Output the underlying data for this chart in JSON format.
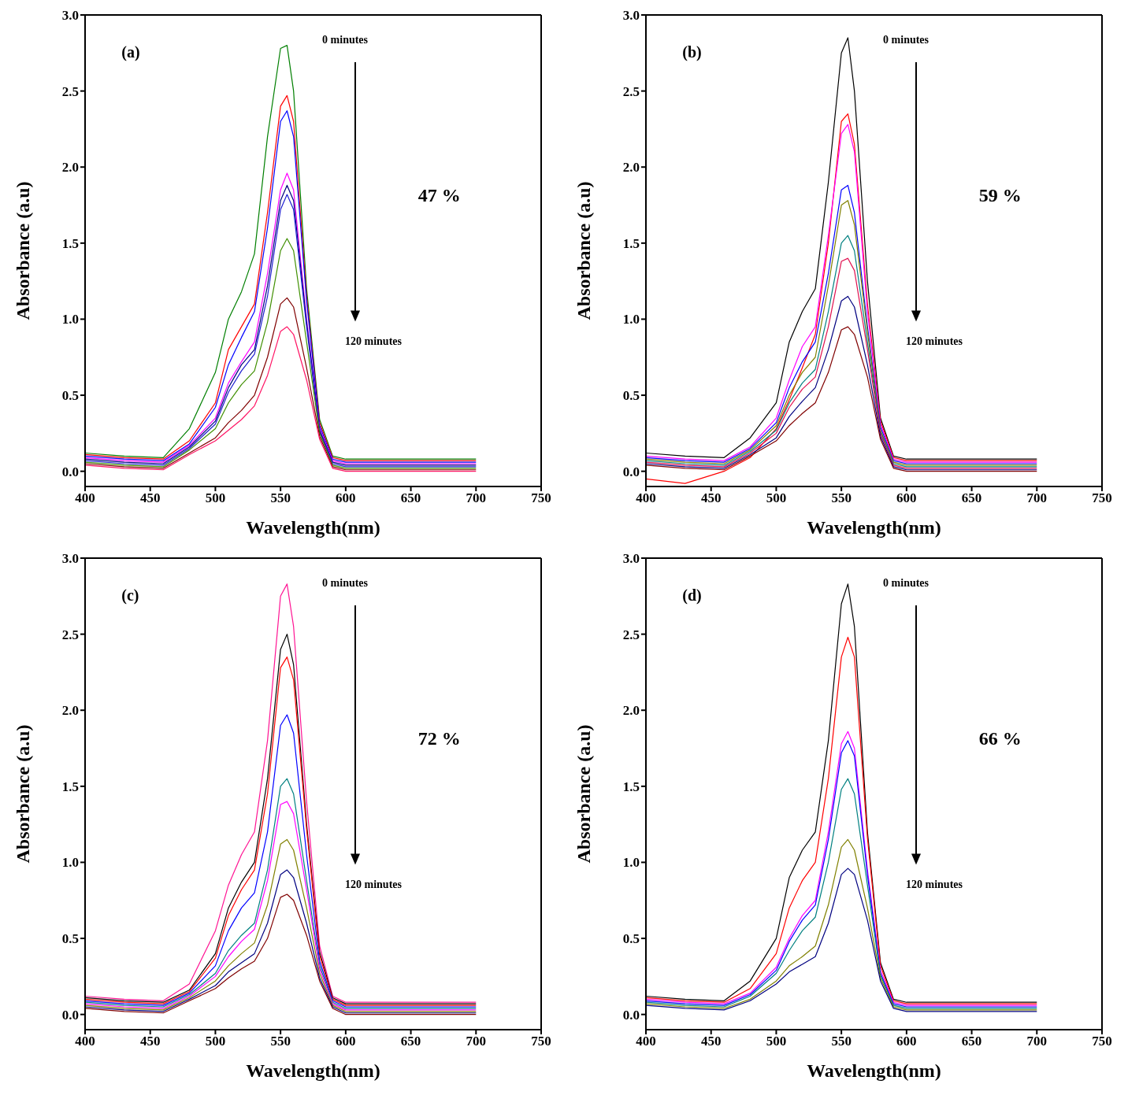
{
  "chart_data": [
    {
      "type": "line",
      "xlabel": "Wavelength(nm)",
      "ylabel": "Absorbance (a.u)",
      "annotations": [
        "(a)",
        "0 minutes",
        "120 minutes",
        "47 %"
      ],
      "marker": "none",
      "line_style": "solid",
      "xlim": [
        400,
        750
      ],
      "xticks": [
        400,
        450,
        500,
        550,
        600,
        650,
        700,
        750
      ],
      "ylim": [
        -0.1,
        3.0
      ],
      "yticks": [
        {
          "value": 0,
          "label": "0.0"
        },
        {
          "value": 0.5,
          "label": "0.5"
        },
        {
          "value": 1,
          "label": "1.0"
        },
        {
          "value": 1.5,
          "label": "1.5"
        },
        {
          "value": 2,
          "label": "2.0"
        },
        {
          "value": 2.5,
          "label": "2.5"
        },
        {
          "value": 3,
          "label": "3.0"
        }
      ],
      "x": [
        400,
        430,
        460,
        480,
        500,
        510,
        520,
        530,
        540,
        550,
        555,
        560,
        570,
        580,
        590,
        600,
        650,
        700
      ],
      "series": [
        {
          "color": "#007f00",
          "values": [
            0.12,
            0.1,
            0.09,
            0.28,
            0.65,
            1.0,
            1.18,
            1.43,
            2.2,
            2.78,
            2.8,
            2.5,
            1.2,
            0.34,
            0.1,
            0.08,
            0.08,
            0.08
          ]
        },
        {
          "color": "#ff0000",
          "values": [
            0.11,
            0.09,
            0.08,
            0.2,
            0.45,
            0.8,
            0.95,
            1.1,
            1.7,
            2.4,
            2.47,
            2.3,
            1.15,
            0.32,
            0.09,
            0.07,
            0.07,
            0.07
          ]
        },
        {
          "color": "#0000ff",
          "values": [
            0.1,
            0.08,
            0.07,
            0.18,
            0.42,
            0.7,
            0.88,
            1.05,
            1.6,
            2.3,
            2.37,
            2.2,
            1.12,
            0.3,
            0.08,
            0.06,
            0.06,
            0.06
          ]
        },
        {
          "color": "#ff00ff",
          "values": [
            0.09,
            0.07,
            0.06,
            0.17,
            0.35,
            0.58,
            0.72,
            0.85,
            1.3,
            1.85,
            1.96,
            1.85,
            1.0,
            0.28,
            0.07,
            0.05,
            0.05,
            0.05
          ]
        },
        {
          "color": "#000080",
          "values": [
            0.08,
            0.06,
            0.05,
            0.16,
            0.33,
            0.55,
            0.7,
            0.8,
            1.22,
            1.78,
            1.88,
            1.78,
            0.98,
            0.27,
            0.06,
            0.04,
            0.04,
            0.04
          ]
        },
        {
          "color": "#1f1fd0",
          "values": [
            0.07,
            0.05,
            0.04,
            0.15,
            0.31,
            0.52,
            0.66,
            0.77,
            1.15,
            1.72,
            1.82,
            1.72,
            0.95,
            0.26,
            0.05,
            0.03,
            0.03,
            0.03
          ]
        },
        {
          "color": "#3f8f00",
          "values": [
            0.06,
            0.04,
            0.03,
            0.14,
            0.28,
            0.45,
            0.57,
            0.66,
            0.98,
            1.45,
            1.53,
            1.45,
            0.85,
            0.25,
            0.04,
            0.02,
            0.02,
            0.02
          ]
        },
        {
          "color": "#800000",
          "values": [
            0.05,
            0.03,
            0.02,
            0.12,
            0.22,
            0.32,
            0.4,
            0.5,
            0.75,
            1.1,
            1.14,
            1.08,
            0.68,
            0.23,
            0.03,
            0.01,
            0.01,
            0.01
          ]
        },
        {
          "color": "#ff1464",
          "values": [
            0.04,
            0.02,
            0.01,
            0.11,
            0.2,
            0.27,
            0.34,
            0.43,
            0.63,
            0.92,
            0.95,
            0.9,
            0.6,
            0.21,
            0.02,
            0.0,
            0.0,
            0.0
          ]
        }
      ]
    },
    {
      "type": "line",
      "xlabel": "Wavelength(nm)",
      "ylabel": "Absorbance (a.u)",
      "annotations": [
        "(b)",
        "0 minutes",
        "120 minutes",
        "59 %"
      ],
      "marker": "none",
      "line_style": "solid",
      "xlim": [
        400,
        750
      ],
      "xticks": [
        400,
        450,
        500,
        550,
        600,
        650,
        700,
        750
      ],
      "ylim": [
        -0.1,
        3.0
      ],
      "yticks": [
        {
          "value": 0,
          "label": "0.0"
        },
        {
          "value": 0.5,
          "label": "0.5"
        },
        {
          "value": 1,
          "label": "1.0"
        },
        {
          "value": 1.5,
          "label": "1.5"
        },
        {
          "value": 2,
          "label": "2.0"
        },
        {
          "value": 2.5,
          "label": "2.5"
        },
        {
          "value": 3,
          "label": "3.0"
        }
      ],
      "x": [
        400,
        430,
        460,
        480,
        500,
        510,
        520,
        530,
        540,
        550,
        555,
        560,
        570,
        580,
        590,
        600,
        650,
        700
      ],
      "series": [
        {
          "color": "#000000",
          "values": [
            0.12,
            0.1,
            0.09,
            0.22,
            0.45,
            0.85,
            1.05,
            1.2,
            1.9,
            2.75,
            2.85,
            2.5,
            1.25,
            0.35,
            0.1,
            0.08,
            0.08,
            0.08
          ]
        },
        {
          "color": "#ff0000",
          "values": [
            -0.05,
            -0.08,
            0.0,
            0.09,
            0.28,
            0.47,
            0.68,
            0.9,
            1.5,
            2.3,
            2.35,
            2.15,
            1.1,
            0.33,
            0.09,
            0.07,
            0.07,
            0.07
          ]
        },
        {
          "color": "#ff00ff",
          "values": [
            0.1,
            0.08,
            0.07,
            0.16,
            0.35,
            0.6,
            0.82,
            0.95,
            1.55,
            2.22,
            2.28,
            2.1,
            1.05,
            0.31,
            0.08,
            0.06,
            0.06,
            0.06
          ]
        },
        {
          "color": "#0000ff",
          "values": [
            0.09,
            0.07,
            0.06,
            0.15,
            0.32,
            0.55,
            0.72,
            0.85,
            1.3,
            1.85,
            1.88,
            1.7,
            0.95,
            0.29,
            0.07,
            0.05,
            0.05,
            0.05
          ]
        },
        {
          "color": "#808000",
          "values": [
            0.08,
            0.06,
            0.05,
            0.14,
            0.3,
            0.5,
            0.65,
            0.75,
            1.22,
            1.75,
            1.78,
            1.62,
            0.92,
            0.27,
            0.06,
            0.04,
            0.04,
            0.04
          ]
        },
        {
          "color": "#008080",
          "values": [
            0.07,
            0.05,
            0.04,
            0.13,
            0.27,
            0.45,
            0.58,
            0.67,
            1.05,
            1.5,
            1.55,
            1.45,
            0.85,
            0.26,
            0.05,
            0.03,
            0.03,
            0.03
          ]
        },
        {
          "color": "#e0104f",
          "values": [
            0.06,
            0.04,
            0.03,
            0.12,
            0.25,
            0.42,
            0.54,
            0.62,
            0.95,
            1.38,
            1.4,
            1.32,
            0.8,
            0.25,
            0.04,
            0.02,
            0.02,
            0.02
          ]
        },
        {
          "color": "#000080",
          "values": [
            0.05,
            0.03,
            0.02,
            0.11,
            0.22,
            0.36,
            0.46,
            0.55,
            0.8,
            1.12,
            1.15,
            1.08,
            0.7,
            0.23,
            0.03,
            0.01,
            0.01,
            0.01
          ]
        },
        {
          "color": "#800000",
          "values": [
            0.04,
            0.02,
            0.01,
            0.1,
            0.2,
            0.3,
            0.38,
            0.45,
            0.65,
            0.93,
            0.95,
            0.9,
            0.62,
            0.21,
            0.02,
            0.0,
            0.0,
            0.0
          ]
        }
      ]
    },
    {
      "type": "line",
      "xlabel": "Wavelength(nm)",
      "ylabel": "Absorbance (a.u)",
      "annotations": [
        "(c)",
        "0 minutes",
        "120 minutes",
        "72 %"
      ],
      "marker": "none",
      "line_style": "solid",
      "xlim": [
        400,
        750
      ],
      "xticks": [
        400,
        450,
        500,
        550,
        600,
        650,
        700,
        750
      ],
      "ylim": [
        -0.1,
        3.0
      ],
      "yticks": [
        {
          "value": 0,
          "label": "0.0"
        },
        {
          "value": 0.5,
          "label": "0.5"
        },
        {
          "value": 1,
          "label": "1.0"
        },
        {
          "value": 1.5,
          "label": "1.5"
        },
        {
          "value": 2,
          "label": "2.0"
        },
        {
          "value": 2.5,
          "label": "2.5"
        },
        {
          "value": 3,
          "label": "3.0"
        }
      ],
      "x": [
        400,
        430,
        460,
        480,
        500,
        510,
        520,
        530,
        540,
        550,
        555,
        560,
        570,
        580,
        590,
        600,
        650,
        700
      ],
      "series": [
        {
          "color": "#ff1493",
          "values": [
            0.12,
            0.1,
            0.09,
            0.2,
            0.55,
            0.85,
            1.05,
            1.2,
            1.8,
            2.75,
            2.83,
            2.55,
            1.4,
            0.45,
            0.12,
            0.08,
            0.08,
            0.08
          ]
        },
        {
          "color": "#000000",
          "values": [
            0.11,
            0.09,
            0.08,
            0.16,
            0.4,
            0.7,
            0.87,
            1.0,
            1.55,
            2.4,
            2.5,
            2.3,
            1.25,
            0.41,
            0.11,
            0.07,
            0.07,
            0.07
          ]
        },
        {
          "color": "#ff0000",
          "values": [
            0.1,
            0.08,
            0.07,
            0.15,
            0.37,
            0.65,
            0.82,
            0.95,
            1.45,
            2.28,
            2.35,
            2.2,
            1.22,
            0.39,
            0.1,
            0.06,
            0.06,
            0.06
          ]
        },
        {
          "color": "#0000ff",
          "values": [
            0.09,
            0.07,
            0.06,
            0.14,
            0.32,
            0.55,
            0.7,
            0.8,
            1.2,
            1.9,
            1.97,
            1.85,
            1.05,
            0.35,
            0.09,
            0.05,
            0.05,
            0.05
          ]
        },
        {
          "color": "#008080",
          "values": [
            0.08,
            0.06,
            0.05,
            0.13,
            0.27,
            0.42,
            0.52,
            0.6,
            0.95,
            1.5,
            1.55,
            1.45,
            0.88,
            0.32,
            0.08,
            0.04,
            0.04,
            0.04
          ]
        },
        {
          "color": "#ff00ff",
          "values": [
            0.07,
            0.05,
            0.04,
            0.12,
            0.25,
            0.38,
            0.48,
            0.56,
            0.88,
            1.38,
            1.4,
            1.32,
            0.82,
            0.3,
            0.07,
            0.03,
            0.03,
            0.03
          ]
        },
        {
          "color": "#808000",
          "values": [
            0.06,
            0.04,
            0.03,
            0.11,
            0.22,
            0.32,
            0.4,
            0.47,
            0.72,
            1.12,
            1.15,
            1.08,
            0.7,
            0.27,
            0.06,
            0.02,
            0.02,
            0.02
          ]
        },
        {
          "color": "#000080",
          "values": [
            0.05,
            0.03,
            0.02,
            0.1,
            0.19,
            0.28,
            0.34,
            0.4,
            0.6,
            0.92,
            0.95,
            0.9,
            0.6,
            0.24,
            0.05,
            0.01,
            0.01,
            0.01
          ]
        },
        {
          "color": "#800000",
          "values": [
            0.04,
            0.02,
            0.01,
            0.09,
            0.17,
            0.24,
            0.3,
            0.35,
            0.5,
            0.77,
            0.79,
            0.75,
            0.52,
            0.22,
            0.04,
            0.0,
            0.0,
            0.0
          ]
        }
      ]
    },
    {
      "type": "line",
      "xlabel": "Wavelength(nm)",
      "ylabel": "Absorbance (a.u)",
      "annotations": [
        "(d)",
        "0 minutes",
        "120 minutes",
        "66 %"
      ],
      "marker": "none",
      "line_style": "solid",
      "xlim": [
        400,
        750
      ],
      "xticks": [
        400,
        450,
        500,
        550,
        600,
        650,
        700,
        750
      ],
      "ylim": [
        -0.1,
        3.0
      ],
      "yticks": [
        {
          "value": 0,
          "label": "0.0"
        },
        {
          "value": 0.5,
          "label": "0.5"
        },
        {
          "value": 1,
          "label": "1.0"
        },
        {
          "value": 1.5,
          "label": "1.5"
        },
        {
          "value": 2,
          "label": "2.0"
        },
        {
          "value": 2.5,
          "label": "2.5"
        },
        {
          "value": 3,
          "label": "3.0"
        }
      ],
      "x": [
        400,
        430,
        460,
        480,
        500,
        510,
        520,
        530,
        540,
        550,
        555,
        560,
        570,
        580,
        590,
        600,
        650,
        700
      ],
      "series": [
        {
          "color": "#000000",
          "values": [
            0.12,
            0.1,
            0.09,
            0.22,
            0.5,
            0.9,
            1.08,
            1.2,
            1.8,
            2.7,
            2.83,
            2.55,
            1.2,
            0.34,
            0.1,
            0.08,
            0.08,
            0.08
          ]
        },
        {
          "color": "#ff0000",
          "values": [
            0.11,
            0.09,
            0.08,
            0.17,
            0.4,
            0.7,
            0.88,
            1.0,
            1.55,
            2.35,
            2.48,
            2.35,
            1.16,
            0.32,
            0.09,
            0.07,
            0.07,
            0.07
          ]
        },
        {
          "color": "#ff00ff",
          "values": [
            0.1,
            0.08,
            0.07,
            0.14,
            0.31,
            0.5,
            0.65,
            0.75,
            1.2,
            1.78,
            1.86,
            1.75,
            0.95,
            0.29,
            0.08,
            0.06,
            0.06,
            0.06
          ]
        },
        {
          "color": "#0000ff",
          "values": [
            0.09,
            0.07,
            0.06,
            0.13,
            0.29,
            0.48,
            0.62,
            0.72,
            1.15,
            1.72,
            1.8,
            1.7,
            0.92,
            0.27,
            0.07,
            0.05,
            0.05,
            0.05
          ]
        },
        {
          "color": "#008080",
          "values": [
            0.08,
            0.06,
            0.05,
            0.12,
            0.27,
            0.42,
            0.55,
            0.64,
            1.0,
            1.48,
            1.55,
            1.45,
            0.85,
            0.26,
            0.06,
            0.04,
            0.04,
            0.04
          ]
        },
        {
          "color": "#808000",
          "values": [
            0.07,
            0.05,
            0.04,
            0.1,
            0.22,
            0.32,
            0.38,
            0.45,
            0.72,
            1.1,
            1.15,
            1.08,
            0.7,
            0.24,
            0.05,
            0.03,
            0.03,
            0.03
          ]
        },
        {
          "color": "#000080",
          "values": [
            0.06,
            0.04,
            0.03,
            0.09,
            0.2,
            0.28,
            0.33,
            0.38,
            0.6,
            0.92,
            0.96,
            0.92,
            0.62,
            0.22,
            0.04,
            0.02,
            0.02,
            0.02
          ]
        }
      ]
    }
  ]
}
